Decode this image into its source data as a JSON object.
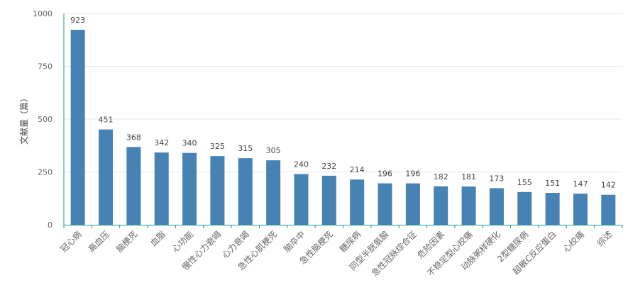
{
  "colors": {
    "bar": "#4682b4",
    "axis": "#1e9c97",
    "grid": "#e6e6e6",
    "tick_text": "#666666",
    "label_text": "#444444"
  },
  "chart_data": {
    "type": "bar",
    "title": "",
    "xlabel": "",
    "ylabel": "文献量（篇）",
    "ylim": [
      0,
      1000
    ],
    "yticks": [
      0,
      250,
      500,
      750,
      1000
    ],
    "grid": true,
    "categories": [
      "冠心病",
      "高血压",
      "脑梗死",
      "血脂",
      "心功能",
      "慢性心力衰竭",
      "心力衰竭",
      "急性心肌梗死",
      "脑卒中",
      "急性脑梗死",
      "糖尿病",
      "同型半胱氨酸",
      "急性冠脉综合征",
      "危险因素",
      "不稳定型心绞痛",
      "动脉粥样硬化",
      "2型糖尿病",
      "超敏C反应蛋白",
      "心绞痛",
      "综述"
    ],
    "values": [
      923,
      451,
      368,
      342,
      340,
      325,
      315,
      305,
      240,
      232,
      214,
      196,
      196,
      182,
      181,
      173,
      155,
      151,
      147,
      142
    ]
  }
}
